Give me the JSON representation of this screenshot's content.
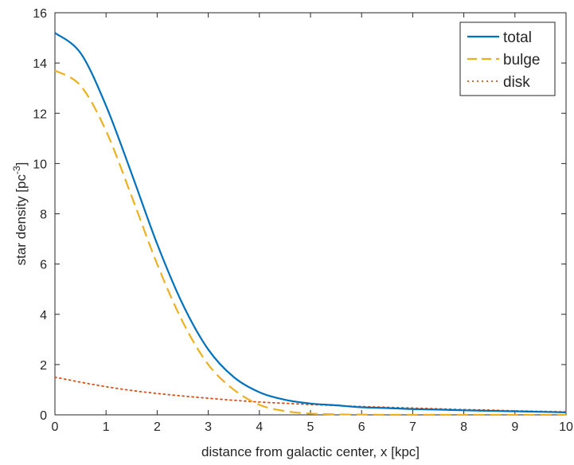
{
  "chart_data": {
    "type": "line",
    "xlabel": "distance from galactic center, x [kpc]",
    "ylabel": {
      "main": "star density [pc",
      "superscript": "-3",
      "close": "]"
    },
    "xlim": [
      0,
      10
    ],
    "ylim": [
      0,
      16
    ],
    "x_ticks": [
      0,
      1,
      2,
      3,
      4,
      5,
      6,
      7,
      8,
      9,
      10
    ],
    "y_ticks": [
      0,
      2,
      4,
      6,
      8,
      10,
      12,
      14,
      16
    ],
    "grid": false,
    "legend_position": "top-right",
    "x": [
      0,
      0.5,
      1,
      1.5,
      2,
      2.5,
      3,
      3.5,
      4,
      4.5,
      5,
      5.5,
      6,
      6.5,
      7,
      7.5,
      8,
      8.5,
      9,
      9.5,
      10
    ],
    "series": [
      {
        "name": "total",
        "color": "#0072bd",
        "dash": "solid",
        "values": [
          15.2,
          14.4,
          12.3,
          9.6,
          6.8,
          4.4,
          2.6,
          1.5,
          0.9,
          0.6,
          0.45,
          0.38,
          0.3,
          0.27,
          0.23,
          0.21,
          0.18,
          0.16,
          0.14,
          0.12,
          0.1
        ]
      },
      {
        "name": "bulge",
        "color": "#edb120",
        "dash": "dashed",
        "values": [
          13.7,
          13.1,
          11.3,
          8.7,
          6.0,
          3.7,
          2.0,
          1.0,
          0.4,
          0.15,
          0.05,
          0.02,
          0.01,
          0.0,
          0.0,
          0.0,
          0.0,
          0.0,
          0.0,
          0.0,
          0.0
        ]
      },
      {
        "name": "disk",
        "color": "#d95319",
        "dash": "dotted",
        "values": [
          1.5,
          1.3,
          1.12,
          0.97,
          0.85,
          0.75,
          0.66,
          0.58,
          0.51,
          0.46,
          0.41,
          0.37,
          0.33,
          0.3,
          0.27,
          0.24,
          0.21,
          0.19,
          0.16,
          0.14,
          0.12
        ]
      }
    ]
  }
}
